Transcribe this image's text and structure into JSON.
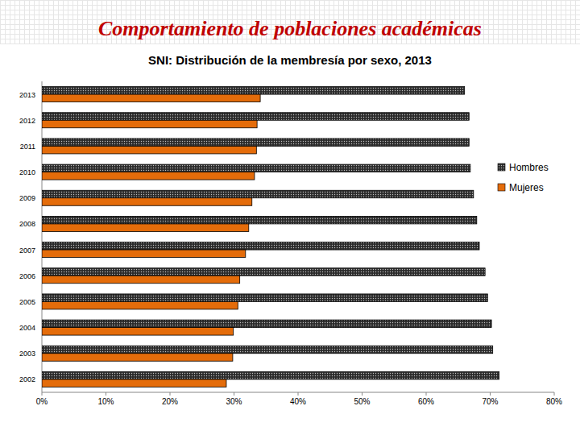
{
  "chart_data": {
    "type": "bar",
    "orientation": "horizontal",
    "title": "Comportamiento de poblaciones académicas",
    "subtitle": "SNI: Distribución de la membresía por sexo, 2013",
    "categories": [
      "2013",
      "2012",
      "2011",
      "2010",
      "2009",
      "2008",
      "2007",
      "2006",
      "2005",
      "2004",
      "2003",
      "2002"
    ],
    "series": [
      {
        "name": "Hombres",
        "color": "#2b2b2b",
        "values": [
          66.0,
          66.7,
          66.7,
          66.9,
          67.4,
          67.9,
          68.3,
          69.2,
          69.6,
          70.2,
          70.4,
          71.4
        ]
      },
      {
        "name": "Mujeres",
        "color": "#e46c0a",
        "values": [
          34.1,
          33.6,
          33.5,
          33.2,
          32.8,
          32.3,
          31.8,
          30.9,
          30.6,
          29.9,
          29.8,
          28.8
        ]
      }
    ],
    "xlim": [
      0,
      80
    ],
    "xticks": [
      {
        "value": 0,
        "label": "0%"
      },
      {
        "value": 10,
        "label": "10%"
      },
      {
        "value": 20,
        "label": "20%"
      },
      {
        "value": 30,
        "label": "30%"
      },
      {
        "value": 40,
        "label": "40%"
      },
      {
        "value": 50,
        "label": "50%"
      },
      {
        "value": 60,
        "label": "60%"
      },
      {
        "value": 70,
        "label": "70%"
      },
      {
        "value": 80,
        "label": "80%"
      }
    ],
    "grid": false,
    "legend": "right"
  }
}
